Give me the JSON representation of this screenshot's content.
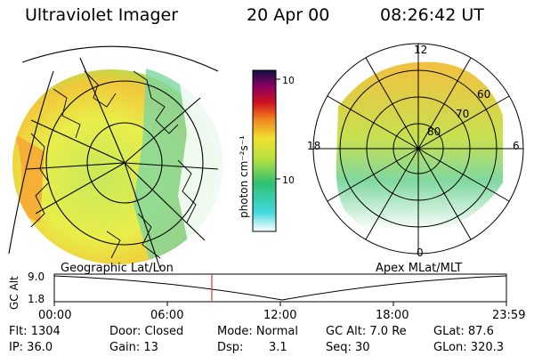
{
  "header": {
    "title": "Ultraviolet Imager",
    "date": "20 Apr 00",
    "time": "08:26:42 UT"
  },
  "colorbar": {
    "unit_label": "photon cm⁻²s⁻¹",
    "ticks": [
      "1000",
      "100"
    ]
  },
  "apex_grid": {
    "mlt_labels": [
      "12",
      "18",
      "6",
      "0"
    ],
    "lat_labels": [
      "60",
      "70",
      "80"
    ]
  },
  "panels": {
    "left_label": "Geographic Lat/Lon",
    "right_label": "Apex MLat/MLT"
  },
  "altitude_plot": {
    "ylabel": "GC Alt",
    "yticks": [
      "9.0",
      "1.8"
    ],
    "xticks": [
      "00:00",
      "06:00",
      "12:00",
      "18:00",
      "23:59"
    ]
  },
  "status": {
    "flt": "Flt: 1304",
    "ip": "IP: 36.0",
    "door": "Door: Closed",
    "gain": "Gain: 13",
    "mode": "Mode: Normal",
    "dsp_label": "Dsp:",
    "dsp_value": "3.1",
    "gc_alt": "GC Alt: 7.0 Re",
    "seq": "Seq: 30",
    "glat": "GLat: 87.6",
    "glon": "GLon: 320.3"
  }
}
